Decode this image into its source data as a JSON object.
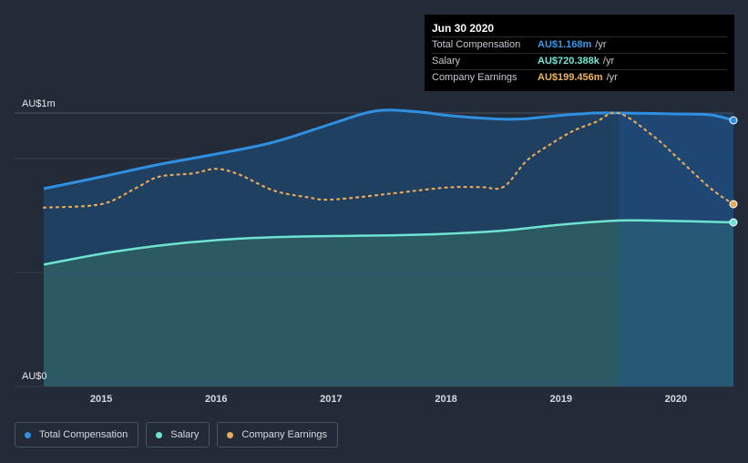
{
  "tooltip": {
    "title": "Jun 30 2020",
    "rows": [
      {
        "label": "Total Compensation",
        "value": "AU$1.168m",
        "unit": "/yr",
        "color": "#3899e8"
      },
      {
        "label": "Salary",
        "value": "AU$720.388k",
        "unit": "/yr",
        "color": "#76e8d8"
      },
      {
        "label": "Company Earnings",
        "value": "AU$199.456m",
        "unit": "/yr",
        "color": "#f0b45e"
      }
    ]
  },
  "legend": [
    {
      "label": "Total Compensation",
      "color": "#2f8fe0"
    },
    {
      "label": "Salary",
      "color": "#6ee3d2"
    },
    {
      "label": "Company Earnings",
      "color": "#e7a95a"
    }
  ],
  "colors": {
    "background": "#232a38",
    "total": "#2f8fe0",
    "salary": "#6ee3d2",
    "earnings": "#e7a95a",
    "total_fill": "#1f4469",
    "salary_fill": "#2c5d66"
  },
  "chart_data": {
    "type": "area",
    "y_top_label": "AU$1m",
    "y_bottom_label": "AU$0",
    "x_ticks": [
      "2015",
      "2016",
      "2017",
      "2018",
      "2019",
      "2020"
    ],
    "x_range": [
      2014.5,
      2020.5
    ],
    "y_range": [
      0,
      1.2
    ],
    "series": [
      {
        "name": "Total Compensation",
        "x": [
          2014.5,
          2015.0,
          2015.5,
          2016.0,
          2016.5,
          2017.0,
          2017.3,
          2017.5,
          2017.8,
          2018.0,
          2018.3,
          2018.5,
          2018.7,
          2019.0,
          2019.3,
          2019.5,
          2019.8,
          2020.0,
          2020.3,
          2020.5
        ],
        "y": [
          0.868,
          0.92,
          0.974,
          1.02,
          1.072,
          1.152,
          1.2,
          1.213,
          1.203,
          1.19,
          1.178,
          1.173,
          1.175,
          1.19,
          1.2,
          1.2,
          1.198,
          1.196,
          1.192,
          1.168
        ]
      },
      {
        "name": "Salary",
        "x": [
          2014.5,
          2015.0,
          2015.5,
          2016.0,
          2016.5,
          2017.0,
          2017.5,
          2018.0,
          2018.5,
          2019.0,
          2019.5,
          2020.0,
          2020.5
        ],
        "y": [
          0.535,
          0.582,
          0.618,
          0.642,
          0.655,
          0.66,
          0.663,
          0.67,
          0.684,
          0.71,
          0.728,
          0.726,
          0.72
        ]
      },
      {
        "name": "Company Earnings",
        "x": [
          2014.5,
          2015.0,
          2015.3,
          2015.5,
          2015.8,
          2016.0,
          2016.2,
          2016.5,
          2016.8,
          2017.0,
          2017.5,
          2018.0,
          2018.3,
          2018.5,
          2018.7,
          2018.9,
          2019.1,
          2019.3,
          2019.5,
          2019.8,
          2020.0,
          2020.3,
          2020.5
        ],
        "y": [
          0.785,
          0.8,
          0.87,
          0.92,
          0.935,
          0.955,
          0.93,
          0.86,
          0.83,
          0.82,
          0.845,
          0.873,
          0.875,
          0.876,
          0.99,
          1.06,
          1.12,
          1.16,
          1.2,
          1.1,
          1.01,
          0.87,
          0.8
        ]
      }
    ]
  }
}
